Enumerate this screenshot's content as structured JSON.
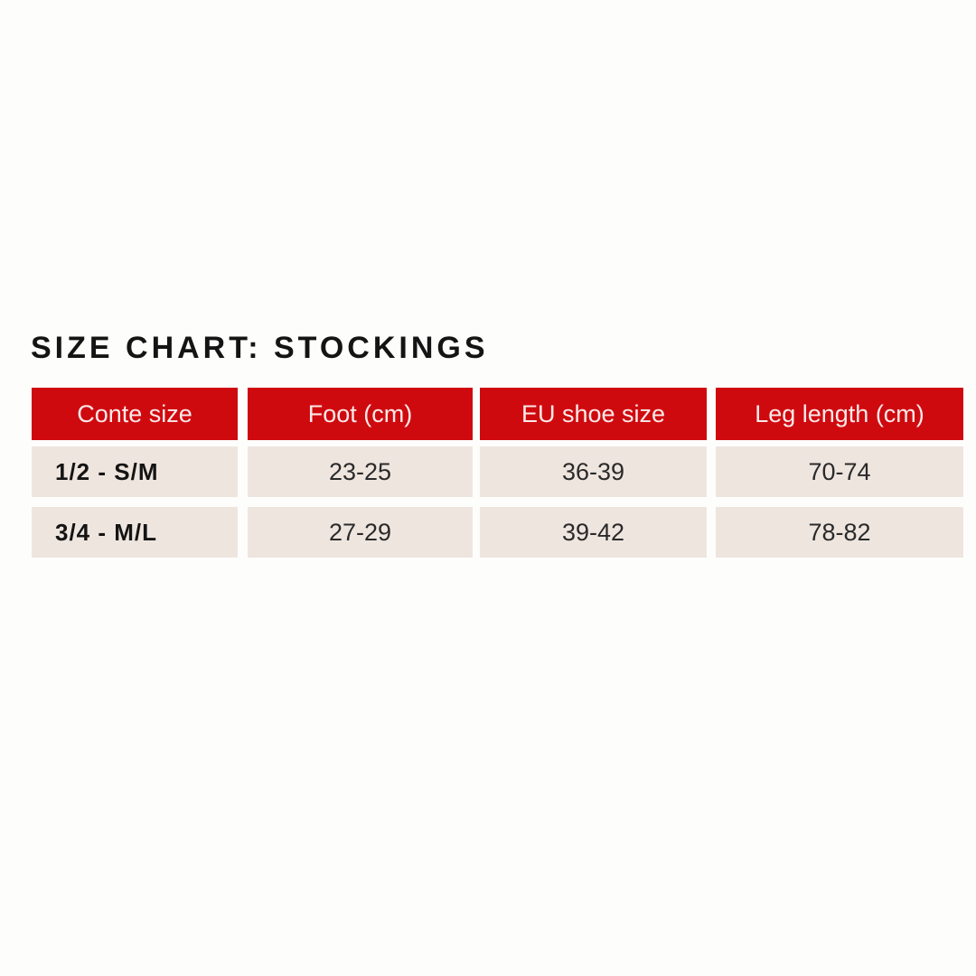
{
  "title": "SIZE CHART: STOCKINGS",
  "colors": {
    "header_bg": "#cf0a0f",
    "row_bg": "#efe5df"
  },
  "table": {
    "headers": [
      "Conte size",
      "Foot (cm)",
      "EU shoe size",
      "Leg length (cm)"
    ],
    "rows": [
      [
        "1/2 - S/M",
        "23-25",
        "36-39",
        "70-74"
      ],
      [
        "3/4 - M/L",
        "27-29",
        "39-42",
        "78-82"
      ]
    ]
  }
}
